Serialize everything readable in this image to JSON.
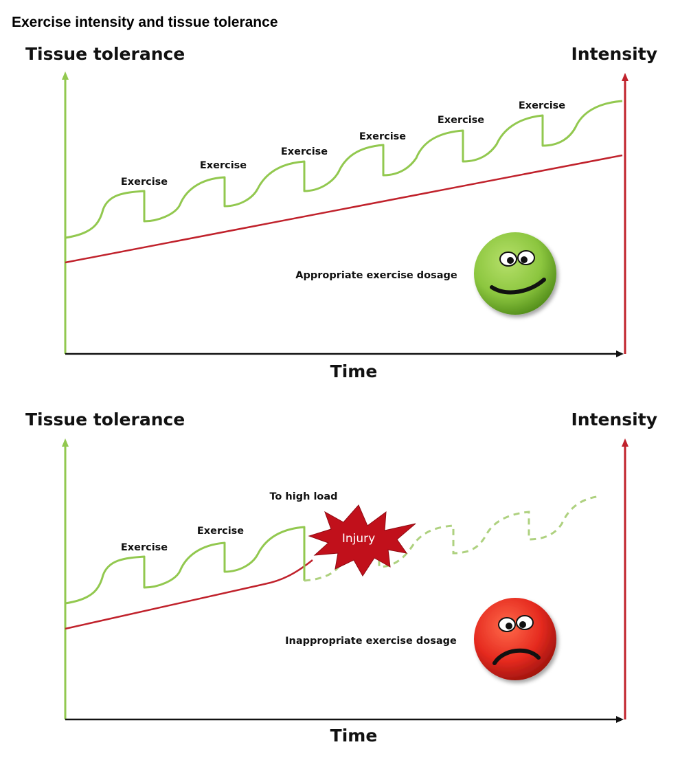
{
  "title": "Exercise intensity and tissue tolerance",
  "colors": {
    "tolerance": "#92c84f",
    "intensity": "#c0212b",
    "axis": "#111111",
    "happy_face": "#8cc63f",
    "sad_face": "#e52a1f",
    "injury": "#c1101b"
  },
  "top_panel": {
    "y_left_label": "Tissue tolerance",
    "y_right_label": "Intensity",
    "x_label": "Time",
    "exercise_labels": [
      "Exercise",
      "Exercise",
      "Exercise",
      "Exercise",
      "Exercise",
      "Exercise"
    ],
    "caption": "Appropriate exercise dosage",
    "face": "happy-face-icon"
  },
  "bottom_panel": {
    "y_left_label": "Tissue tolerance",
    "y_right_label": "Intensity",
    "x_label": "Time",
    "exercise_labels": [
      "Exercise",
      "Exercise"
    ],
    "high_load_label": "To high load",
    "injury_label": "Injury",
    "caption": "Inappropriate exercise dosage",
    "face": "sad-face-icon"
  }
}
